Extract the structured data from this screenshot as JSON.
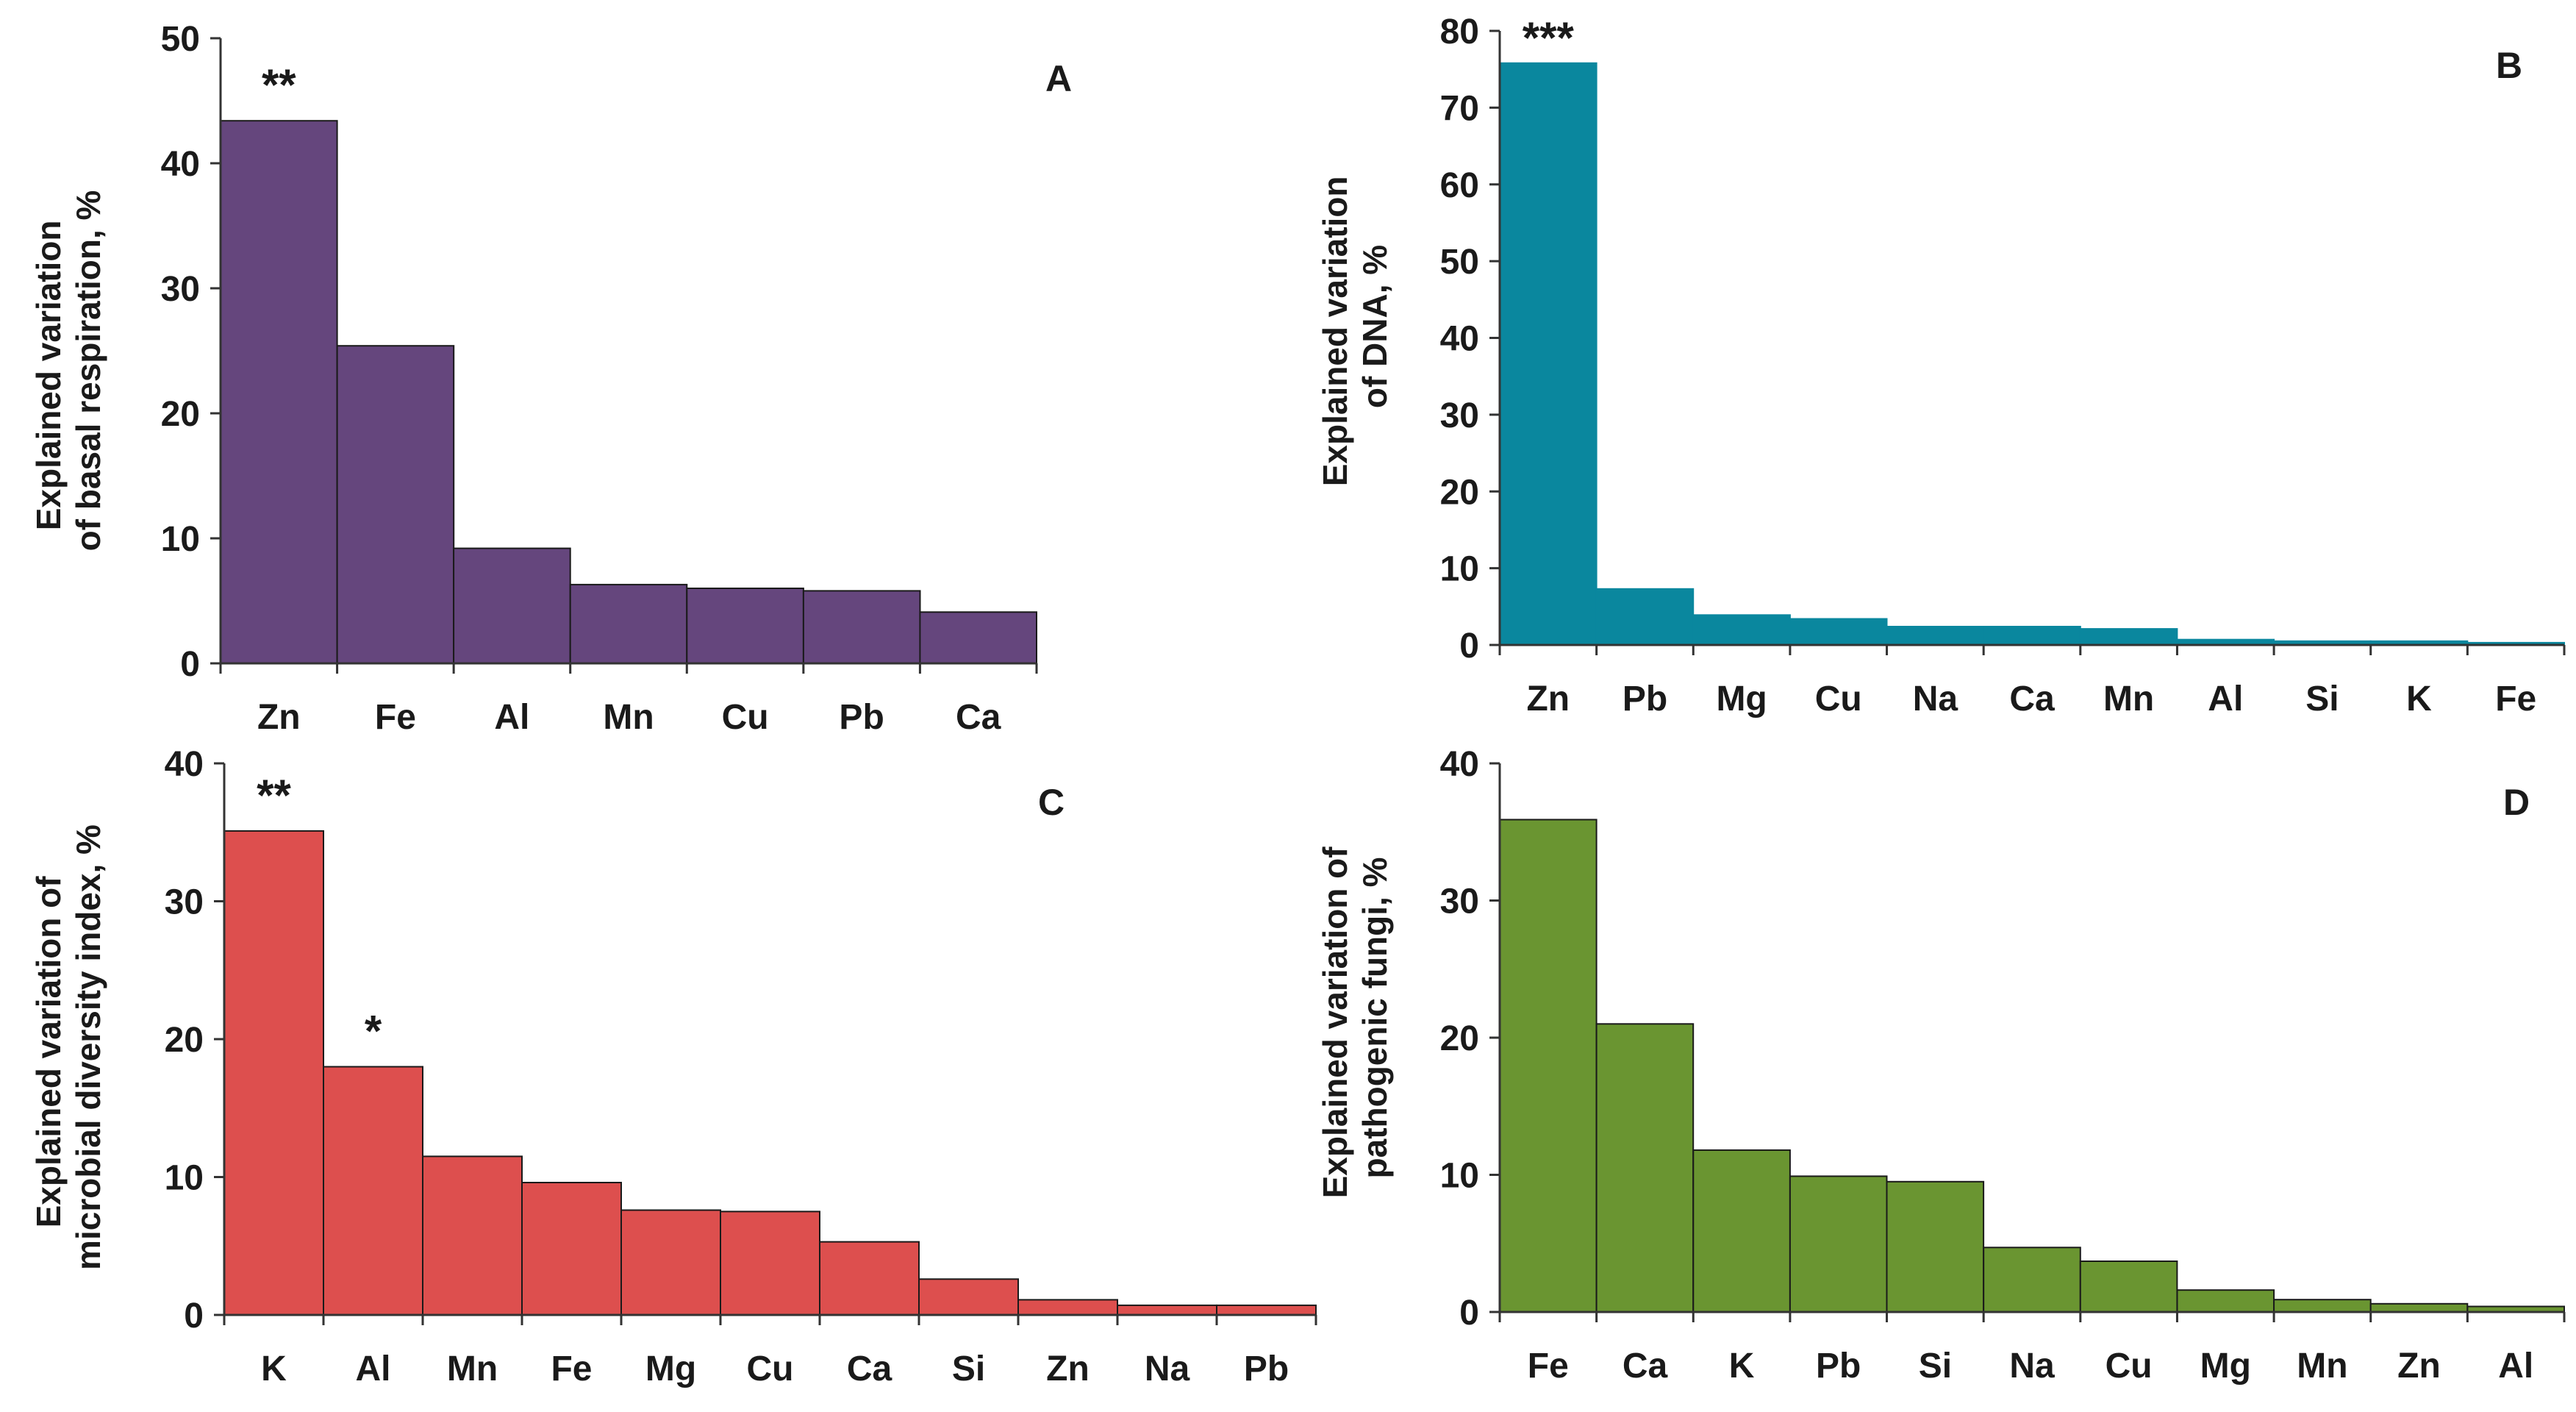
{
  "figure": {
    "title": ""
  },
  "chart_data": [
    {
      "id": "A",
      "type": "bar",
      "panel_label": "A",
      "ylabel_lines": [
        "Explained variation",
        "of basal respiration, %"
      ],
      "xlabel": "",
      "categories": [
        "Zn",
        "Fe",
        "Al",
        "Mn",
        "Cu",
        "Pb",
        "Ca"
      ],
      "values": [
        43.4,
        25.4,
        9.2,
        6.3,
        6.0,
        5.8,
        4.1
      ],
      "ylim": [
        0,
        50
      ],
      "yticks": [
        0,
        10,
        20,
        30,
        40,
        50
      ],
      "color": "#65467D",
      "grid": false,
      "annotations": [
        {
          "category": "Zn",
          "text": "**"
        }
      ]
    },
    {
      "id": "B",
      "type": "bar",
      "panel_label": "B",
      "ylabel_lines": [
        "Explained variation",
        "of DNA, %"
      ],
      "xlabel": "",
      "categories": [
        "Zn",
        "Pb",
        "Mg",
        "Cu",
        "Na",
        "Ca",
        "Mn",
        "Al",
        "Si",
        "K",
        "Fe"
      ],
      "values": [
        75.8,
        7.3,
        3.9,
        3.4,
        2.4,
        2.4,
        2.1,
        0.7,
        0.5,
        0.5,
        0.3
      ],
      "ylim": [
        0,
        80
      ],
      "yticks": [
        0,
        10,
        20,
        30,
        40,
        50,
        60,
        70,
        80
      ],
      "color": "#0A879E",
      "grid": false,
      "annotations": [
        {
          "category": "Zn",
          "text": "***"
        }
      ]
    },
    {
      "id": "C",
      "type": "bar",
      "panel_label": "C",
      "ylabel_lines": [
        "Explained variation of",
        "microbial diversity index, %"
      ],
      "xlabel": "",
      "categories": [
        "K",
        "Al",
        "Mn",
        "Fe",
        "Mg",
        "Cu",
        "Ca",
        "Si",
        "Zn",
        "Na",
        "Pb"
      ],
      "values": [
        35.1,
        18.0,
        11.5,
        9.6,
        7.6,
        7.5,
        5.3,
        2.6,
        1.1,
        0.7,
        0.7
      ],
      "ylim": [
        0,
        40
      ],
      "yticks": [
        0,
        10,
        20,
        30,
        40
      ],
      "color": "#DD4F4E",
      "grid": false,
      "annotations": [
        {
          "category": "K",
          "text": "**"
        },
        {
          "category": "Al",
          "text": "*"
        }
      ]
    },
    {
      "id": "D",
      "type": "bar",
      "panel_label": "D",
      "ylabel_lines": [
        "Explained  variation of",
        "pathogenic fungi, %"
      ],
      "xlabel": "",
      "categories": [
        "Fe",
        "Ca",
        "K",
        "Pb",
        "Si",
        "Na",
        "Cu",
        "Mg",
        "Mn",
        "Zn",
        "Al"
      ],
      "values": [
        35.9,
        21.0,
        11.8,
        9.9,
        9.5,
        4.7,
        3.7,
        1.6,
        0.9,
        0.6,
        0.4
      ],
      "ylim": [
        0,
        40
      ],
      "yticks": [
        0,
        10,
        20,
        30,
        40
      ],
      "color": "#6A9531",
      "grid": false,
      "annotations": []
    }
  ]
}
